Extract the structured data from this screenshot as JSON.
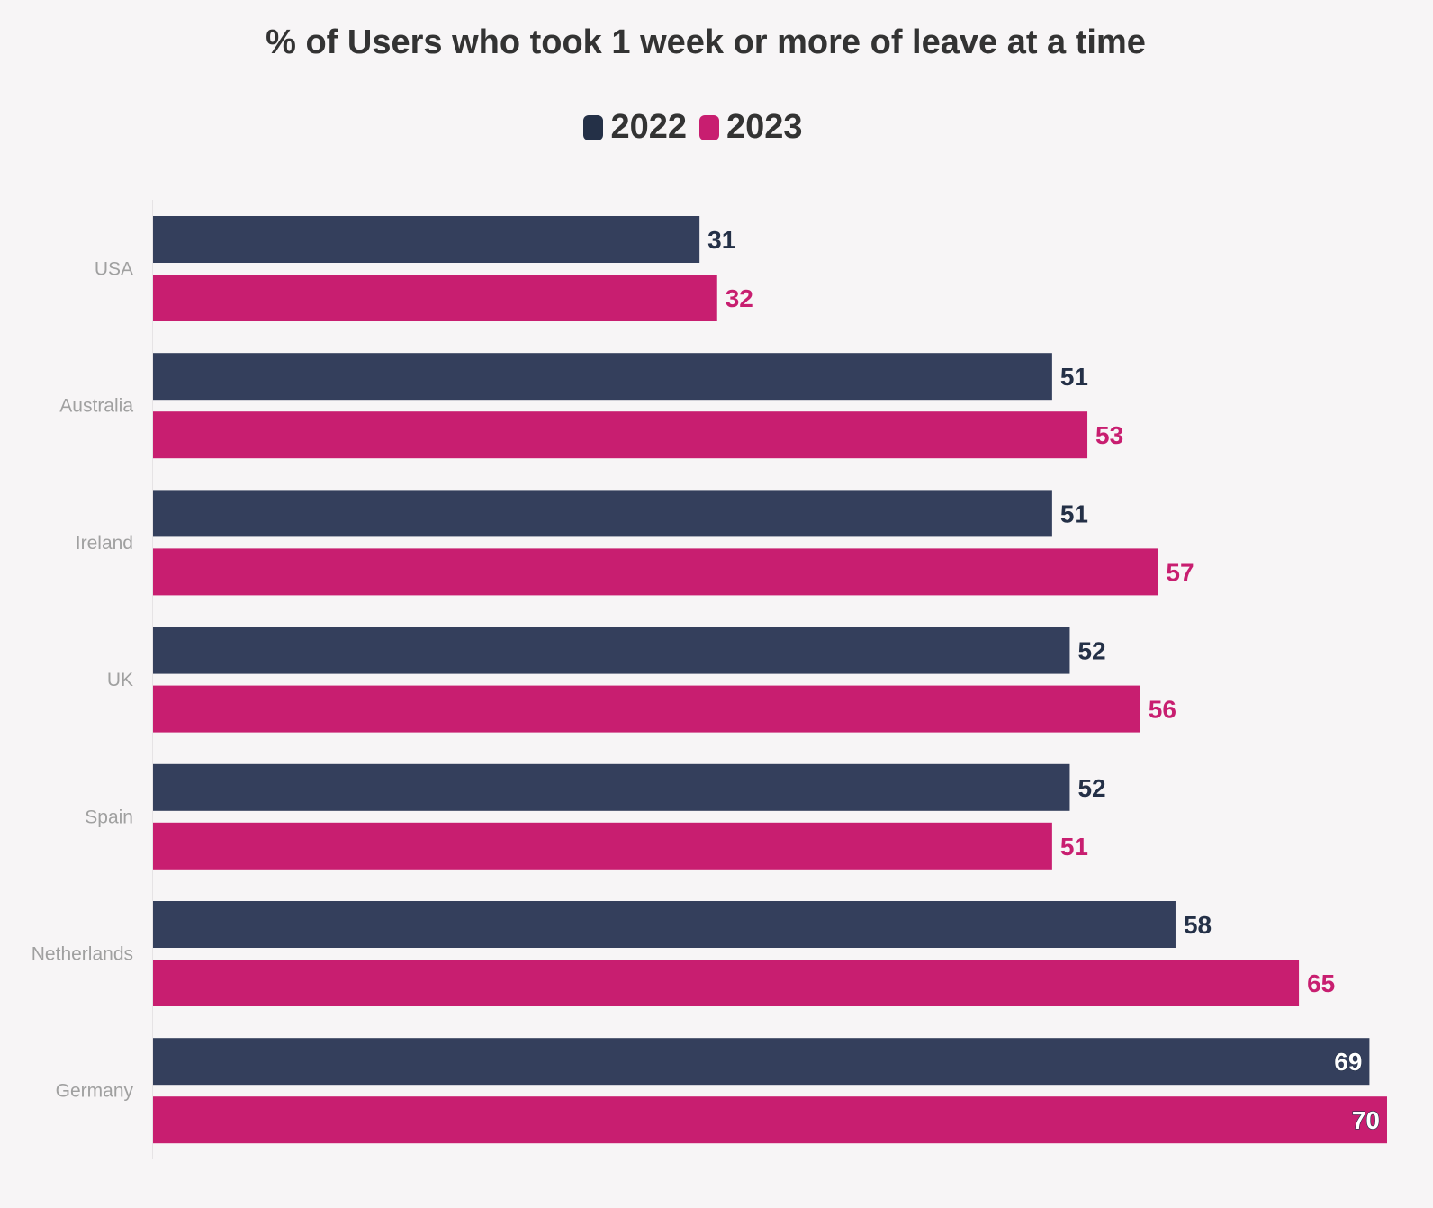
{
  "colors": {
    "series_2022": "#343f5c",
    "series_2023": "#c81e70",
    "label_2022": "#243047",
    "label_2023": "#c81e70",
    "background": "#f7f5f6"
  },
  "chart_data": {
    "type": "bar",
    "orientation": "horizontal",
    "title": "% of Users who took 1 week or more of leave at a time",
    "xlabel": "",
    "ylabel": "",
    "categories": [
      "USA",
      "Australia",
      "Ireland",
      "UK",
      "Spain",
      "Netherlands",
      "Germany"
    ],
    "series": [
      {
        "name": "2022",
        "values": [
          31,
          51,
          51,
          52,
          52,
          58,
          69
        ]
      },
      {
        "name": "2023",
        "values": [
          32,
          53,
          57,
          56,
          51,
          65,
          70
        ]
      }
    ],
    "xlim": [
      0,
      70
    ],
    "grid": false,
    "legend_placement": "top-center",
    "data_labels": true
  }
}
